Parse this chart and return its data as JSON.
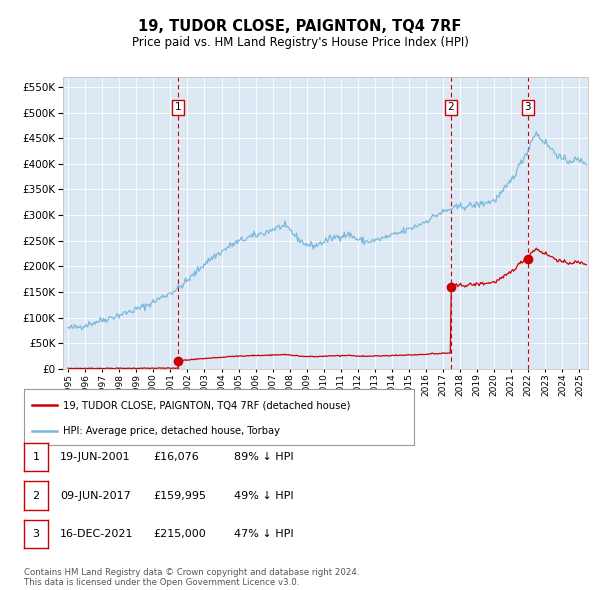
{
  "title": "19, TUDOR CLOSE, PAIGNTON, TQ4 7RF",
  "subtitle": "Price paid vs. HM Land Registry's House Price Index (HPI)",
  "background_color": "#dce9f5",
  "fig_bg_color": "#ffffff",
  "hpi_color": "#7ab8d9",
  "price_color": "#cc0000",
  "vline_color": "#cc0000",
  "transactions": [
    {
      "date_num": 2001.47,
      "price": 16076,
      "label": "1"
    },
    {
      "date_num": 2017.44,
      "price": 159995,
      "label": "2"
    },
    {
      "date_num": 2021.96,
      "price": 215000,
      "label": "3"
    }
  ],
  "transaction_notes": [
    {
      "label": "1",
      "date": "19-JUN-2001",
      "price": "£16,076",
      "note": "89% ↓ HPI"
    },
    {
      "label": "2",
      "date": "09-JUN-2017",
      "price": "£159,995",
      "note": "49% ↓ HPI"
    },
    {
      "label": "3",
      "date": "16-DEC-2021",
      "price": "£215,000",
      "note": "47% ↓ HPI"
    }
  ],
  "legend_line1": "19, TUDOR CLOSE, PAIGNTON, TQ4 7RF (detached house)",
  "legend_line2": "HPI: Average price, detached house, Torbay",
  "footer": "Contains HM Land Registry data © Crown copyright and database right 2024.\nThis data is licensed under the Open Government Licence v3.0.",
  "ylim": [
    0,
    570000
  ],
  "xlim_start": 1994.7,
  "xlim_end": 2025.5,
  "hpi_anchors": [
    [
      1995.0,
      79000
    ],
    [
      1995.5,
      81000
    ],
    [
      1996.0,
      85000
    ],
    [
      1996.5,
      90000
    ],
    [
      1997.0,
      95000
    ],
    [
      1997.5,
      100000
    ],
    [
      1998.0,
      105000
    ],
    [
      1998.5,
      110000
    ],
    [
      1999.0,
      116000
    ],
    [
      1999.5,
      122000
    ],
    [
      2000.0,
      130000
    ],
    [
      2000.5,
      140000
    ],
    [
      2001.0,
      148000
    ],
    [
      2001.5,
      158000
    ],
    [
      2002.0,
      172000
    ],
    [
      2002.5,
      188000
    ],
    [
      2003.0,
      205000
    ],
    [
      2003.5,
      218000
    ],
    [
      2004.0,
      228000
    ],
    [
      2004.5,
      240000
    ],
    [
      2005.0,
      248000
    ],
    [
      2005.5,
      255000
    ],
    [
      2006.0,
      260000
    ],
    [
      2006.5,
      265000
    ],
    [
      2007.0,
      272000
    ],
    [
      2007.5,
      278000
    ],
    [
      2008.0,
      272000
    ],
    [
      2008.3,
      260000
    ],
    [
      2008.7,
      248000
    ],
    [
      2009.0,
      242000
    ],
    [
      2009.5,
      240000
    ],
    [
      2010.0,
      248000
    ],
    [
      2010.5,
      255000
    ],
    [
      2011.0,
      260000
    ],
    [
      2011.5,
      262000
    ],
    [
      2012.0,
      252000
    ],
    [
      2012.5,
      248000
    ],
    [
      2013.0,
      250000
    ],
    [
      2013.5,
      255000
    ],
    [
      2014.0,
      260000
    ],
    [
      2014.5,
      266000
    ],
    [
      2015.0,
      272000
    ],
    [
      2015.5,
      280000
    ],
    [
      2016.0,
      288000
    ],
    [
      2016.5,
      298000
    ],
    [
      2017.0,
      306000
    ],
    [
      2017.5,
      312000
    ],
    [
      2018.0,
      316000
    ],
    [
      2018.5,
      318000
    ],
    [
      2019.0,
      320000
    ],
    [
      2019.5,
      324000
    ],
    [
      2020.0,
      328000
    ],
    [
      2020.5,
      345000
    ],
    [
      2021.0,
      368000
    ],
    [
      2021.5,
      398000
    ],
    [
      2022.0,
      428000
    ],
    [
      2022.3,
      455000
    ],
    [
      2022.5,
      460000
    ],
    [
      2022.7,
      450000
    ],
    [
      2023.0,
      442000
    ],
    [
      2023.3,
      430000
    ],
    [
      2023.7,
      418000
    ],
    [
      2024.0,
      408000
    ],
    [
      2024.3,
      405000
    ],
    [
      2024.7,
      408000
    ],
    [
      2025.0,
      406000
    ],
    [
      2025.3,
      403000
    ]
  ]
}
